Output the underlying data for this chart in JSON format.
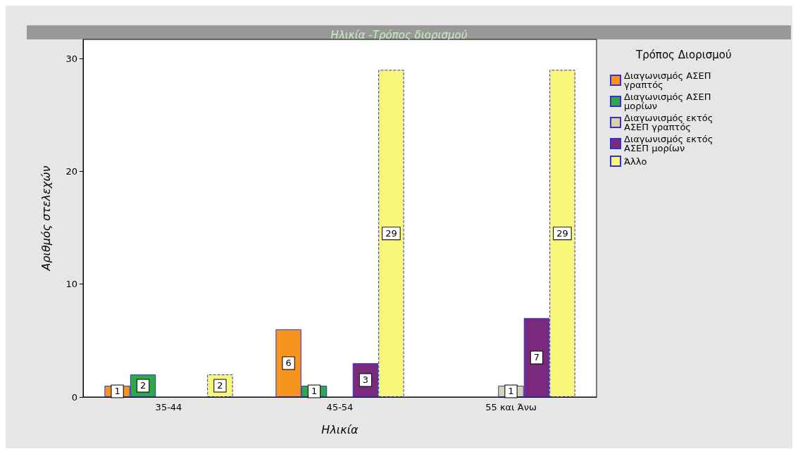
{
  "chart_data": {
    "type": "bar",
    "title": "Ηλικία -Τρόπος διορισμού",
    "xlabel": "Ηλικία",
    "ylabel": "Αριθμός στελεχών",
    "legend_title": "Τρόπος Διορισμού",
    "legend": "right",
    "grid": false,
    "data_labels": true,
    "categories": [
      "35-44",
      "45-54",
      "55 και Άνω"
    ],
    "ylim": [
      0,
      31.7
    ],
    "yticks": [
      0,
      10,
      20,
      30
    ],
    "series": [
      {
        "name": "Διαγωνισμός ΑΣΕΠ γραπτός",
        "color": "#f7941d",
        "values": [
          1,
          6,
          null
        ]
      },
      {
        "name": "Διαγωνισμός ΑΣΕΠ μορίων",
        "color": "#2ea84a",
        "values": [
          2,
          1,
          null
        ]
      },
      {
        "name": "Διαγωνισμός εκτός ΑΣΕΠ γραπτός",
        "color": "#d8d3a8",
        "values": [
          null,
          null,
          1
        ]
      },
      {
        "name": "Διαγωνισμός εκτός ΑΣΕΠ μορίων",
        "color": "#7a2a7c",
        "values": [
          null,
          3,
          7
        ]
      },
      {
        "name": "Άλλο",
        "color": "#f8f77a",
        "values": [
          2,
          29,
          29
        ],
        "line_style": "dashed"
      }
    ]
  }
}
